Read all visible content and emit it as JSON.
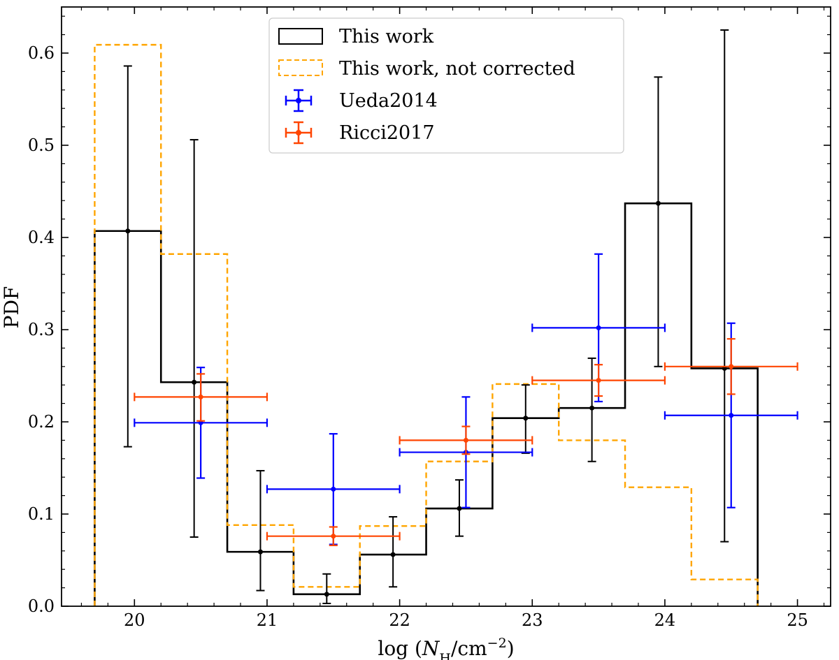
{
  "chart_data": {
    "type": "histogram-with-errorbars",
    "xlabel_prefix": "log (",
    "xlabel_var": "N",
    "xlabel_sub": "H",
    "xlabel_unit": "/cm",
    "xlabel_exp": "−2",
    "xlabel_suffix": ")",
    "ylabel": "PDF",
    "xlim": [
      19.45,
      25.25
    ],
    "ylim": [
      0.0,
      0.65
    ],
    "xticks": [
      20,
      21,
      22,
      23,
      24,
      25
    ],
    "xtick_labels": [
      "20",
      "21",
      "22",
      "23",
      "24",
      "25"
    ],
    "yticks": [
      0.0,
      0.1,
      0.2,
      0.3,
      0.4,
      0.5,
      0.6
    ],
    "ytick_labels": [
      "0.0",
      "0.1",
      "0.2",
      "0.3",
      "0.4",
      "0.5",
      "0.6"
    ],
    "legend": {
      "location": "top-center",
      "entries": [
        "This work",
        "This work, not corrected",
        "Ueda2014",
        "Ricci2017"
      ]
    },
    "series": [
      {
        "name": "This work",
        "kind": "step",
        "color": "#000000",
        "bin_edges": [
          19.7,
          20.2,
          20.7,
          21.2,
          21.7,
          22.2,
          22.7,
          23.2,
          23.7,
          24.2,
          24.7
        ],
        "values": [
          0.407,
          0.243,
          0.059,
          0.013,
          0.056,
          0.106,
          0.204,
          0.215,
          0.437,
          0.258
        ],
        "points_x": [
          19.95,
          20.45,
          20.95,
          21.45,
          21.95,
          22.45,
          22.95,
          23.45,
          23.95,
          24.45
        ],
        "err_low": [
          0.173,
          0.075,
          0.017,
          0.003,
          0.021,
          0.076,
          0.166,
          0.157,
          0.26,
          0.07
        ],
        "err_high": [
          0.586,
          0.506,
          0.147,
          0.035,
          0.097,
          0.137,
          0.24,
          0.269,
          0.574,
          0.625
        ]
      },
      {
        "name": "This work, not corrected",
        "kind": "step-dashed",
        "color": "#FFA500",
        "bin_edges": [
          19.7,
          20.2,
          20.7,
          21.2,
          21.7,
          22.2,
          22.7,
          23.2,
          23.7,
          24.2,
          24.7
        ],
        "values": [
          0.609,
          0.382,
          0.088,
          0.021,
          0.087,
          0.157,
          0.241,
          0.18,
          0.129,
          0.029
        ]
      },
      {
        "name": "Ueda2014",
        "kind": "errorbar",
        "color": "#0000FF",
        "x": [
          20.5,
          21.5,
          22.5,
          23.5,
          24.5
        ],
        "y": [
          0.199,
          0.127,
          0.167,
          0.302,
          0.207
        ],
        "x_low": [
          20.0,
          21.0,
          22.0,
          23.0,
          24.0
        ],
        "x_high": [
          21.0,
          22.0,
          23.0,
          24.0,
          25.0
        ],
        "y_low": [
          0.139,
          0.067,
          0.107,
          0.222,
          0.107
        ],
        "y_high": [
          0.259,
          0.187,
          0.227,
          0.382,
          0.307
        ]
      },
      {
        "name": "Ricci2017",
        "kind": "errorbar",
        "color": "#FF4500",
        "x": [
          20.5,
          21.5,
          22.5,
          23.5,
          24.5
        ],
        "y": [
          0.227,
          0.076,
          0.18,
          0.245,
          0.26
        ],
        "x_low": [
          20.0,
          21.0,
          22.0,
          23.0,
          24.0
        ],
        "x_high": [
          21.0,
          22.0,
          23.0,
          24.0,
          25.0
        ],
        "y_low": [
          0.201,
          0.066,
          0.165,
          0.228,
          0.23
        ],
        "y_high": [
          0.252,
          0.086,
          0.195,
          0.262,
          0.29
        ]
      }
    ]
  }
}
